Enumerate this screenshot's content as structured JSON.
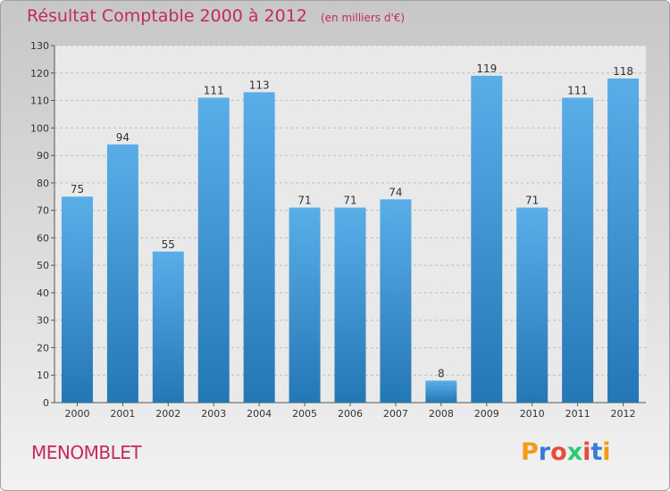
{
  "header": {
    "title": "Résultat Comptable 2000 à 2012",
    "subtitle": "(en milliers d'€)"
  },
  "footer": {
    "commune": "MENOMBLET",
    "logo_text": "Proxiti"
  },
  "colors": {
    "accent": "#c42a5b",
    "bar_light": "#5aaee8",
    "bar_dark": "#2477b5"
  },
  "chart_data": {
    "type": "bar",
    "title": "Résultat Comptable 2000 à 2012",
    "categories": [
      "2000",
      "2001",
      "2002",
      "2003",
      "2004",
      "2005",
      "2006",
      "2007",
      "2008",
      "2009",
      "2010",
      "2011",
      "2012"
    ],
    "values": [
      75,
      94,
      55,
      111,
      113,
      71,
      71,
      74,
      8,
      119,
      71,
      111,
      118
    ],
    "ylim": [
      0,
      130
    ],
    "yticks": [
      0,
      10,
      20,
      30,
      40,
      50,
      60,
      70,
      80,
      90,
      100,
      110,
      120,
      130
    ],
    "grid": true
  }
}
